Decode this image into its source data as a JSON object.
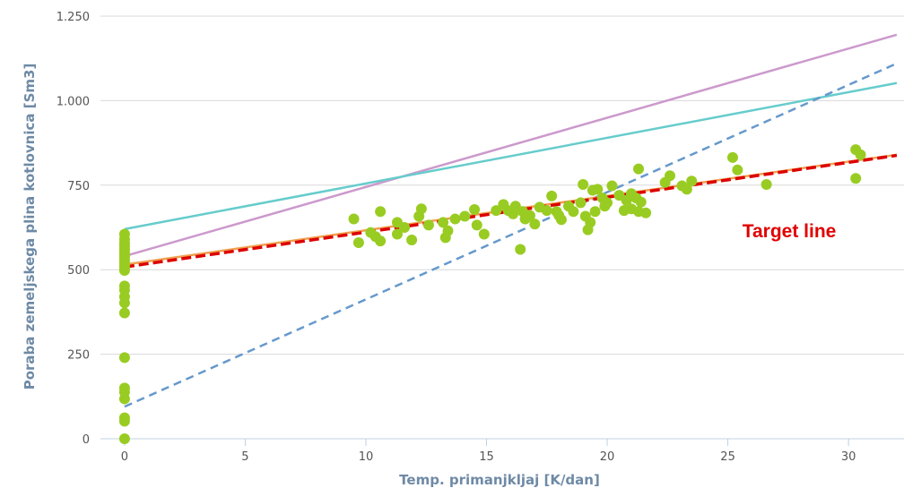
{
  "chart_data": {
    "type": "scatter",
    "xlabel": "Temp. primanjkljaj [K/dan]",
    "ylabel": "Poraba zemeljskega plina kotlovnica [Sm3]",
    "xlim": [
      -1,
      32.3
    ],
    "ylim": [
      0,
      1250
    ],
    "x_ticks": [
      0,
      5,
      10,
      15,
      20,
      25,
      30
    ],
    "x_tick_labels": [
      "0",
      "5",
      "10",
      "15",
      "20",
      "25",
      "30"
    ],
    "y_ticks": [
      0,
      250,
      500,
      750,
      1000,
      1250
    ],
    "y_tick_labels": [
      "0",
      "250",
      "500",
      "750",
      "1.000",
      "1.250"
    ],
    "grid": "horizontal",
    "annotation": {
      "text": "Target line",
      "x": 25.6,
      "y": 615
    },
    "series": [
      {
        "type": "scatter",
        "color": "#99cc22",
        "points": [
          [
            0,
            605
          ],
          [
            0,
            590
          ],
          [
            0,
            578
          ],
          [
            0,
            570
          ],
          [
            0,
            560
          ],
          [
            0,
            552
          ],
          [
            0,
            545
          ],
          [
            0,
            538
          ],
          [
            0,
            530
          ],
          [
            0,
            522
          ],
          [
            0,
            512
          ],
          [
            0,
            505
          ],
          [
            0,
            498
          ],
          [
            0,
            452
          ],
          [
            0,
            440
          ],
          [
            0,
            420
          ],
          [
            0,
            402
          ],
          [
            0,
            372
          ],
          [
            0,
            240
          ],
          [
            0,
            150
          ],
          [
            0,
            138
          ],
          [
            0,
            118
          ],
          [
            0,
            62
          ],
          [
            0,
            52
          ],
          [
            0,
            0
          ],
          [
            9.5,
            650
          ],
          [
            9.7,
            580
          ],
          [
            10.2,
            610
          ],
          [
            10.4,
            598
          ],
          [
            10.6,
            672
          ],
          [
            10.6,
            585
          ],
          [
            11.3,
            640
          ],
          [
            11.3,
            605
          ],
          [
            11.6,
            625
          ],
          [
            11.9,
            588
          ],
          [
            12.2,
            658
          ],
          [
            12.3,
            680
          ],
          [
            12.6,
            632
          ],
          [
            13.2,
            640
          ],
          [
            13.3,
            595
          ],
          [
            13.4,
            615
          ],
          [
            13.7,
            650
          ],
          [
            14.1,
            658
          ],
          [
            14.5,
            678
          ],
          [
            14.6,
            632
          ],
          [
            14.9,
            605
          ],
          [
            15.4,
            675
          ],
          [
            15.7,
            693
          ],
          [
            15.9,
            675
          ],
          [
            16.1,
            665
          ],
          [
            16.2,
            688
          ],
          [
            16.4,
            560
          ],
          [
            16.5,
            672
          ],
          [
            16.6,
            650
          ],
          [
            16.8,
            660
          ],
          [
            17.0,
            635
          ],
          [
            17.2,
            685
          ],
          [
            17.5,
            675
          ],
          [
            17.7,
            718
          ],
          [
            17.9,
            672
          ],
          [
            18.0,
            660
          ],
          [
            18.1,
            648
          ],
          [
            18.4,
            688
          ],
          [
            18.6,
            672
          ],
          [
            18.9,
            698
          ],
          [
            19.0,
            752
          ],
          [
            19.1,
            658
          ],
          [
            19.2,
            618
          ],
          [
            19.3,
            640
          ],
          [
            19.4,
            735
          ],
          [
            19.5,
            672
          ],
          [
            19.6,
            738
          ],
          [
            19.8,
            712
          ],
          [
            19.9,
            688
          ],
          [
            20.0,
            698
          ],
          [
            20.2,
            748
          ],
          [
            20.5,
            720
          ],
          [
            20.7,
            675
          ],
          [
            20.8,
            705
          ],
          [
            21.0,
            725
          ],
          [
            21.0,
            680
          ],
          [
            21.2,
            712
          ],
          [
            21.3,
            798
          ],
          [
            21.3,
            672
          ],
          [
            21.4,
            700
          ],
          [
            21.6,
            668
          ],
          [
            22.4,
            758
          ],
          [
            22.6,
            778
          ],
          [
            23.1,
            748
          ],
          [
            23.3,
            738
          ],
          [
            23.5,
            762
          ],
          [
            25.2,
            832
          ],
          [
            25.4,
            795
          ],
          [
            26.6,
            752
          ],
          [
            30.3,
            855
          ],
          [
            30.3,
            770
          ],
          [
            30.5,
            840
          ]
        ]
      },
      {
        "type": "line",
        "color": "#cc99cc",
        "dash": false,
        "points": [
          [
            0,
            540
          ],
          [
            32,
            1195
          ]
        ]
      },
      {
        "type": "line",
        "color": "#66cccc",
        "dash": false,
        "points": [
          [
            0,
            620
          ],
          [
            32,
            1052
          ]
        ]
      },
      {
        "type": "line",
        "color": "#6699cc",
        "dash": true,
        "points": [
          [
            0,
            95
          ],
          [
            32,
            1110
          ]
        ]
      },
      {
        "type": "line",
        "color": "#f0a050",
        "dash": false,
        "points": [
          [
            0,
            515
          ],
          [
            32,
            840
          ]
        ]
      },
      {
        "type": "line",
        "color": "#dd0000",
        "dash": true,
        "points": [
          [
            0,
            508
          ],
          [
            32,
            838
          ]
        ]
      }
    ]
  }
}
